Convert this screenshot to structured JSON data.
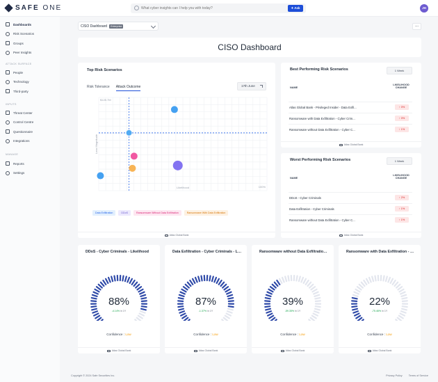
{
  "app": {
    "logo_bold": "SAFE",
    "logo_light": "ONE",
    "user_initials": "JH"
  },
  "search": {
    "placeholder": "What cyber insights can I help you with today?",
    "ask_label": "Ask"
  },
  "sidebar": {
    "items": [
      {
        "label": "Dashboards",
        "icon": "home-icon"
      },
      {
        "label": "Risk Scenarios",
        "icon": "target-icon"
      },
      {
        "label": "Groups",
        "icon": "toggle-icon"
      },
      {
        "label": "Peer Insights",
        "icon": "bars-icon"
      }
    ],
    "attack_surface_label": "ATTACK SURFACE",
    "attack_items": [
      {
        "label": "People",
        "icon": "user-icon"
      },
      {
        "label": "Technology",
        "icon": "chip-icon"
      },
      {
        "label": "Third-party",
        "icon": "link-icon"
      }
    ],
    "inputs_label": "INPUTS",
    "input_items": [
      {
        "label": "Threat Center",
        "icon": "shield-icon"
      },
      {
        "label": "Control Centre",
        "icon": "sliders-icon"
      },
      {
        "label": "Questionnaire",
        "icon": "clipboard-icon"
      },
      {
        "label": "Integrations",
        "icon": "plug-icon"
      }
    ],
    "manage_label": "MANAGE",
    "manage_items": [
      {
        "label": "Reports",
        "icon": "file-icon"
      },
      {
        "label": "Settings",
        "icon": "gear-icon"
      }
    ]
  },
  "dashboard": {
    "selector_label": "CISO Dashboard",
    "selector_badge": "Enterprise",
    "more": "...",
    "title": "CISO Dashboard"
  },
  "top_risk": {
    "title": "Top Risk Scenarios",
    "tabs": [
      "Risk Tolerance",
      "Attack Outcome"
    ],
    "date": "17th June",
    "source": "Atlas Global Bank",
    "chart_data": {
      "type": "scatter",
      "xlabel": "Likelihood",
      "ylabel": "Loss Magnitude",
      "y_max_label": "$128.7M",
      "x_max_label": "100%",
      "points": [
        {
          "series": "Data Exfiltration",
          "x": 45,
          "y": 87,
          "r": 5,
          "color": "#3b9cf0"
        },
        {
          "series": "Data Exfiltration",
          "x": 18,
          "y": 62,
          "r": 4,
          "color": "#4aa8f2"
        },
        {
          "series": "Ransomware With Data Exfiltration",
          "x": 20,
          "y": 24,
          "r": 5,
          "color": "#f8b04c"
        },
        {
          "series": "Ransomware Without Data Exfiltration",
          "x": 21,
          "y": 37,
          "r": 5,
          "color": "#f0509d"
        },
        {
          "series": "DDoS",
          "x": 47,
          "y": 27,
          "r": 7,
          "color": "#7c6cf0"
        },
        {
          "series": "Data Exfiltration",
          "x": 1,
          "y": 16,
          "r": 5,
          "color": "#3b9cf0"
        }
      ],
      "crosshair": {
        "x": 18,
        "y": 62
      }
    },
    "legend": [
      {
        "label": "Data Exfiltration",
        "bg": "#e3f0fd",
        "fg": "#2563eb"
      },
      {
        "label": "DDoS",
        "bg": "#ece9fd",
        "fg": "#6d5bd0"
      },
      {
        "label": "Ransomware Without Data Exfiltration",
        "bg": "#fde7f1",
        "fg": "#db2777"
      },
      {
        "label": "Ransomware With Data Exfiltration",
        "bg": "#fdf1e2",
        "fg": "#d97706"
      }
    ]
  },
  "best": {
    "title": "Best Performing Risk Scenarios",
    "period": "1 Week",
    "col_name": "NAME",
    "col_change_1": "LIKELIHOOD",
    "col_change_2": "CHANGE",
    "rows": [
      {
        "name": "Atlas Global Bank - Privileged Insider - Data Exfil...",
        "change": "↑ 0%"
      },
      {
        "name": "Ransomware with Data Exfiltration - Cyber Crim...",
        "change": "↑ 0%"
      },
      {
        "name": "Ransomware without Data Exfiltration - Cyber C...",
        "change": "↑ 1%"
      }
    ],
    "source": "Atlas Global Bank"
  },
  "worst": {
    "title": "Worst Performing Risk Scenarios",
    "period": "1 Week",
    "col_name": "NAME",
    "col_change_1": "LIKELIHOOD",
    "col_change_2": "CHANGE",
    "rows": [
      {
        "name": "DDoS - Cyber Criminals",
        "change": "↑ 2%"
      },
      {
        "name": "Data Exfiltration - Cyber Criminals",
        "change": "↑ 1%"
      },
      {
        "name": "Ransomware without Data Exfiltration - Cyber C...",
        "change": "↑ 1%"
      }
    ],
    "source": "Atlas Global Bank"
  },
  "gauges": [
    {
      "title": "DDoS - Cyber Criminals - Likelihood",
      "value": 0.88,
      "pct": "88%",
      "delta": "-4.14%",
      "delta_period": "in 1Y",
      "confidence_label": "Confidence :",
      "confidence": "Low",
      "source": "Atlas Global Bank"
    },
    {
      "title": "Data Exfiltration - Cyber Criminals - Likelihood",
      "value": 0.87,
      "pct": "87%",
      "delta": "-1.37%",
      "delta_period": "in 1Y",
      "confidence_label": "Confidence :",
      "confidence": "Low",
      "source": "Atlas Global Bank"
    },
    {
      "title": "Ransomware without Data Exfiltration - Likelihood",
      "value": 0.39,
      "pct": "39%",
      "delta": "-59.35%",
      "delta_period": "in 1Y",
      "confidence_label": "Confidence :",
      "confidence": "Low",
      "source": "Atlas Global Bank"
    },
    {
      "title": "Ransomware with Data Exfiltration - Likelihood",
      "value": 0.22,
      "pct": "22%",
      "delta": "-75.46%",
      "delta_period": "in 1Y",
      "confidence_label": "Confidence :",
      "confidence": "Low",
      "source": "Atlas Global Bank"
    }
  ],
  "footer": {
    "copyright": "Copyright © 2024 Safe Securities Inc.",
    "privacy": "Privacy Policy",
    "terms": "Terms of Service"
  }
}
